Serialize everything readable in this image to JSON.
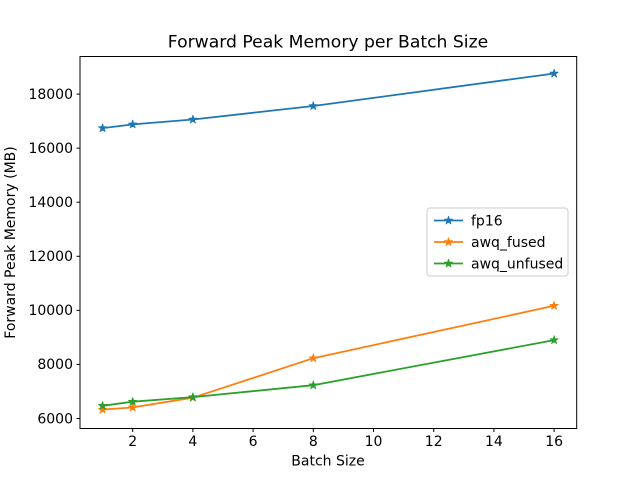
{
  "chart_data": {
    "type": "line",
    "title": "Forward Peak Memory per Batch Size",
    "xlabel": "Batch Size",
    "ylabel": "Forward Peak Memory (MB)",
    "x": [
      1,
      2,
      4,
      8,
      16
    ],
    "series": [
      {
        "name": "fp16",
        "color": "#1f77b4",
        "marker": "star",
        "values": [
          16740,
          16880,
          17060,
          17560,
          18760
        ]
      },
      {
        "name": "awq_fused",
        "color": "#ff7f0e",
        "marker": "star",
        "values": [
          6330,
          6410,
          6770,
          8230,
          10170
        ]
      },
      {
        "name": "awq_unfused",
        "color": "#2ca02c",
        "marker": "star",
        "values": [
          6470,
          6620,
          6790,
          7230,
          8900
        ]
      }
    ],
    "xlim": [
      0.25,
      16.75
    ],
    "ylim": [
      5630,
      19390
    ],
    "xticks": [
      2,
      4,
      6,
      8,
      10,
      12,
      14,
      16
    ],
    "yticks": [
      6000,
      8000,
      10000,
      12000,
      14000,
      16000,
      18000
    ],
    "grid": false,
    "legend": {
      "location": "center right",
      "frame": true,
      "entries": [
        "fp16",
        "awq_fused",
        "awq_unfused"
      ]
    },
    "background": "#ffffff",
    "axis_color": "#000000",
    "legend_border_color": "#cccccc"
  }
}
